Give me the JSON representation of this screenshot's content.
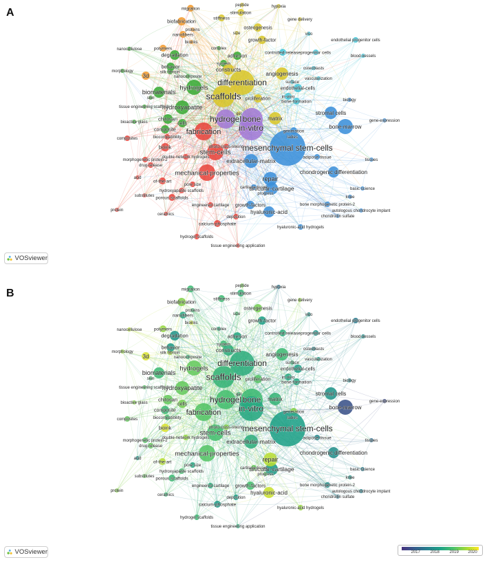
{
  "panels": [
    {
      "letter": "A",
      "coloring": "cluster"
    },
    {
      "letter": "B",
      "coloring": "year"
    }
  ],
  "brand": {
    "name": "VOSviewer",
    "icon": "vosviewer-logo-icon"
  },
  "legend": {
    "ticks": [
      "2017",
      "2018",
      "2019",
      "2020"
    ],
    "colors": [
      "#46327e",
      "#365c8d",
      "#277f8e",
      "#1fa187",
      "#4ac16d",
      "#a0da39",
      "#fde725"
    ]
  },
  "cluster_colors": {
    "red": "#e8473f",
    "green": "#3aaa35",
    "blue": "#3b8fd9",
    "yellow": "#d8c62a",
    "purple": "#a37ad6",
    "cyan": "#43c5d8",
    "orange": "#f39a2b"
  },
  "nodes": [
    {
      "label": "mesenchymal stem-cells",
      "c": "blue",
      "y": 2018.6
    },
    {
      "label": "scaffolds",
      "c": "yellow",
      "y": 2018.9
    },
    {
      "label": "hydrogel",
      "c": "purple",
      "y": 2019.1
    },
    {
      "label": "bone",
      "c": "purple",
      "y": 2019.0
    },
    {
      "label": "in-vitro",
      "c": "purple",
      "y": 2018.7
    },
    {
      "label": "differentiation",
      "c": "yellow",
      "y": 2018.8
    },
    {
      "label": "fabrication",
      "c": "red",
      "y": 2019.2
    },
    {
      "label": "stem-cells",
      "c": "red",
      "y": 2019.1
    },
    {
      "label": "hydrogels",
      "c": "green",
      "y": 2019.3
    },
    {
      "label": "biomaterials",
      "c": "green",
      "y": 2019.0
    },
    {
      "label": "hydroxyapatite",
      "c": "green",
      "y": 2019.3
    },
    {
      "label": "mechanical-properties",
      "c": "red",
      "y": 2019.2
    },
    {
      "label": "extracellular-matrix",
      "c": "blue",
      "y": 2018.8
    },
    {
      "label": "repair",
      "c": "blue",
      "y": 2019.8
    },
    {
      "label": "articular-cartilage",
      "c": "blue",
      "y": 2018.5
    },
    {
      "label": "chondrogenic differentiation",
      "c": "blue",
      "y": 2018.3
    },
    {
      "label": "bone-marrow",
      "c": "blue",
      "y": 2017.4
    },
    {
      "label": "stromal cells",
      "c": "blue",
      "y": 2018.4
    },
    {
      "label": "matrix",
      "c": "yellow",
      "y": 2018.9
    },
    {
      "label": "angiogenesis",
      "c": "yellow",
      "y": 2019.0
    },
    {
      "label": "constructs",
      "c": "yellow",
      "y": 2018.8
    },
    {
      "label": "proliferation",
      "c": "yellow",
      "y": 2019.2
    },
    {
      "label": "hyaluronic-acid",
      "c": "blue",
      "y": 2019.9
    },
    {
      "label": "growth-factors",
      "c": "blue",
      "y": 2019.1
    },
    {
      "label": "growth-factor",
      "c": "yellow",
      "y": 2018.6
    },
    {
      "label": "osteogenesis",
      "c": "yellow",
      "y": 2019.4
    },
    {
      "label": "degradation",
      "c": "green",
      "y": 2018.4
    },
    {
      "label": "chitosan",
      "c": "green",
      "y": 2019.3
    },
    {
      "label": "composite",
      "c": "green",
      "y": 2019.0
    },
    {
      "label": "cells",
      "c": "green",
      "y": 2019.4
    },
    {
      "label": "bioink",
      "c": "red",
      "y": 2020.0
    },
    {
      "label": "endothelial-cells",
      "c": "cyan",
      "y": 2018.6
    },
    {
      "label": "in-vivo",
      "c": "cyan",
      "y": 2018.7
    },
    {
      "label": "bone-formation",
      "c": "cyan",
      "y": 2018.7
    },
    {
      "label": "generation",
      "c": "blue",
      "y": 2019.5
    },
    {
      "label": "adhesion",
      "c": "green",
      "y": 2018.7
    },
    {
      "label": "system",
      "c": "green",
      "y": 2019.0
    },
    {
      "label": "behavior",
      "c": "green",
      "y": 2018.5
    },
    {
      "label": "nanofibers",
      "c": "orange",
      "y": 2018.7
    },
    {
      "label": "biofabrication",
      "c": "orange",
      "y": 2019.5
    },
    {
      "label": "migration",
      "c": "orange",
      "y": 2019.0
    },
    {
      "label": "polymers",
      "c": "orange",
      "y": 2019.6
    },
    {
      "label": "3d",
      "c": "orange",
      "y": 2020.0
    },
    {
      "label": "silk fibroin",
      "c": "green",
      "y": 2019.7
    },
    {
      "label": "stiffness",
      "c": "yellow",
      "y": 2019.0
    },
    {
      "label": "stimulation",
      "c": "yellow",
      "y": 2018.9
    },
    {
      "label": "controlled-release",
      "c": "cyan",
      "y": 2018.8
    },
    {
      "label": "progenitor cells",
      "c": "cyan",
      "y": 2018.4
    },
    {
      "label": "vivo",
      "c": "cyan",
      "y": 2018.4
    },
    {
      "label": "endothelial progenitor cells",
      "c": "cyan",
      "y": 2018.0
    },
    {
      "label": "blood-vessels",
      "c": "cyan",
      "y": 2018.3
    },
    {
      "label": "osteoblasts",
      "c": "cyan",
      "y": 2018.2
    },
    {
      "label": "vascularization",
      "c": "cyan",
      "y": 2018.6
    },
    {
      "label": "surface",
      "c": "cyan",
      "y": 2018.9
    },
    {
      "label": "biology",
      "c": "blue",
      "y": 2018.2
    },
    {
      "label": "gene-expression",
      "c": "blue",
      "y": 2017.3
    },
    {
      "label": "tissues",
      "c": "blue",
      "y": 2017.8
    },
    {
      "label": "adipose tissue",
      "c": "blue",
      "y": 2018.2
    },
    {
      "label": "basic science",
      "c": "blue",
      "y": 2018.0
    },
    {
      "label": "knee",
      "c": "blue",
      "y": 2018.4
    },
    {
      "label": "bone morphogenetic protein-2",
      "c": "blue",
      "y": 2018.3
    },
    {
      "label": "autologous chondrocyte implant",
      "c": "blue",
      "y": 2018.1
    },
    {
      "label": "chondroitin sulfate",
      "c": "blue",
      "y": 2018.0
    },
    {
      "label": "hyaluronic-acid hydrogels",
      "c": "blue",
      "y": 2019.6
    },
    {
      "label": "cartilage tissue",
      "c": "blue",
      "y": 2019.3
    },
    {
      "label": "progress",
      "c": "blue",
      "y": 2019.2
    },
    {
      "label": "engineered cartilage",
      "c": "red",
      "y": 2018.8
    },
    {
      "label": "deposition",
      "c": "red",
      "y": 2018.6
    },
    {
      "label": "calcium-phosphate",
      "c": "red",
      "y": 2018.5
    },
    {
      "label": "hydrogel scaffolds",
      "c": "red",
      "y": 2019.0
    },
    {
      "label": "tissue engineering application",
      "c": "red",
      "y": 2018.8
    },
    {
      "label": "porous scaffolds",
      "c": "red",
      "y": 2019.0
    },
    {
      "label": "ceramics",
      "c": "red",
      "y": 2018.9
    },
    {
      "label": "substitutes",
      "c": "red",
      "y": 2019.3
    },
    {
      "label": "protein",
      "c": "red",
      "y": 2019.5
    },
    {
      "label": "pore size",
      "c": "red",
      "y": 2018.7
    },
    {
      "label": "hydroxyapatite scaffolds",
      "c": "red",
      "y": 2019.1
    },
    {
      "label": "of-the-art",
      "c": "red",
      "y": 2019.8
    },
    {
      "label": "acid",
      "c": "red",
      "y": 2018.4
    },
    {
      "label": "drug-release",
      "c": "red",
      "y": 2019.3
    },
    {
      "label": "morphogenetic protein-2",
      "c": "red",
      "y": 2019.2
    },
    {
      "label": "double-network hydrogels",
      "c": "red",
      "y": 2019.6
    },
    {
      "label": "photo-cross-linking",
      "c": "red",
      "y": 2019.5
    },
    {
      "label": "composites",
      "c": "red",
      "y": 2019.3
    },
    {
      "label": "biocompatibility",
      "c": "red",
      "y": 2019.1
    },
    {
      "label": "bioactive glass",
      "c": "green",
      "y": 2019.5
    },
    {
      "label": "tissue engineering scaffolds",
      "c": "green",
      "y": 2019.2
    },
    {
      "label": "skin",
      "c": "green",
      "y": 2019.1
    },
    {
      "label": "morphology",
      "c": "green",
      "y": 2019.6
    },
    {
      "label": "nanocomposite",
      "c": "green",
      "y": 2018.9
    },
    {
      "label": "nanocellulose",
      "c": "green",
      "y": 2019.8
    },
    {
      "label": "bioinks",
      "c": "orange",
      "y": 2019.9
    },
    {
      "label": "proteins",
      "c": "orange",
      "y": 2019.0
    },
    {
      "label": "complex",
      "c": "green",
      "y": 2018.8
    },
    {
      "label": "size",
      "c": "yellow",
      "y": 2019.1
    },
    {
      "label": "peptide",
      "c": "yellow",
      "y": 2019.4
    },
    {
      "label": "hypoxia",
      "c": "yellow",
      "y": 2017.9
    },
    {
      "label": "gene delivery",
      "c": "yellow",
      "y": 2019.6
    },
    {
      "label": "gel",
      "c": "yellow",
      "y": 2019.0
    },
    {
      "label": "ladies",
      "c": "blue",
      "y": 2018.6
    }
  ]
}
